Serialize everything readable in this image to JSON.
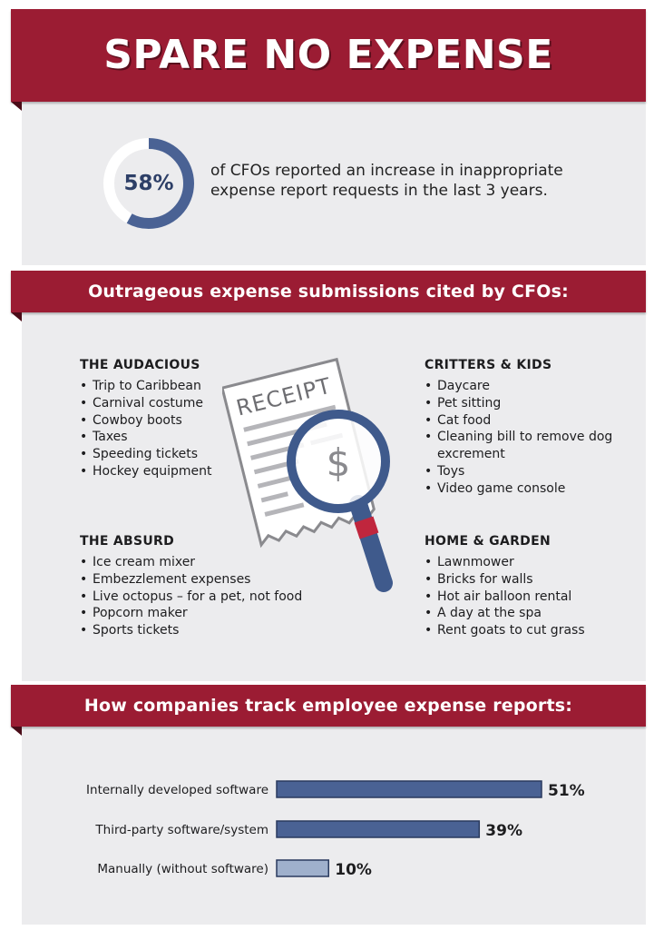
{
  "title": "SPARE NO EXPENSE",
  "stat": {
    "value": "58%",
    "fraction": 0.58,
    "text_line1": "of CFOs reported an increase in inappropriate",
    "text_line2": "expense report requests in the last 3 years."
  },
  "section1_title": "Outrageous expense submissions cited by CFOs:",
  "groups": {
    "audacious": {
      "title": "THE AUDACIOUS",
      "items": [
        "Trip to Caribbean",
        "Carnival costume",
        "Cowboy boots",
        "Taxes",
        "Speeding tickets",
        "Hockey equipment"
      ]
    },
    "critters": {
      "title": "CRITTERS & KIDS",
      "items": [
        "Daycare",
        "Pet sitting",
        "Cat food",
        "Cleaning bill to remove dog excrement",
        "Toys",
        "Video game console"
      ]
    },
    "absurd": {
      "title": "THE ABSURD",
      "items": [
        "Ice cream mixer",
        "Embezzlement expenses",
        "Live octopus – for a pet, not food",
        "Popcorn maker",
        "Sports tickets"
      ]
    },
    "home": {
      "title": "HOME & GARDEN",
      "items": [
        "Lawnmower",
        "Bricks for walls",
        "Hot air balloon rental",
        "A day at the spa",
        "Rent goats to cut grass"
      ]
    }
  },
  "receipt_label": "RECEIPT",
  "receipt_symbol": "$",
  "section2_title": "How companies track employee expense reports:",
  "colors": {
    "banner": "#9b1c33",
    "panel": "#ececee",
    "bar_dark": "#4a6294",
    "bar_light": "#9fb0cc"
  },
  "chart_data": {
    "type": "bar",
    "orientation": "horizontal",
    "categories": [
      "Internally developed software",
      "Third-party software/system",
      "Manually (without software)"
    ],
    "values": [
      51,
      39,
      10
    ],
    "value_labels": [
      "51%",
      "39%",
      "10%"
    ],
    "unit": "%",
    "xlim": [
      0,
      51
    ]
  }
}
